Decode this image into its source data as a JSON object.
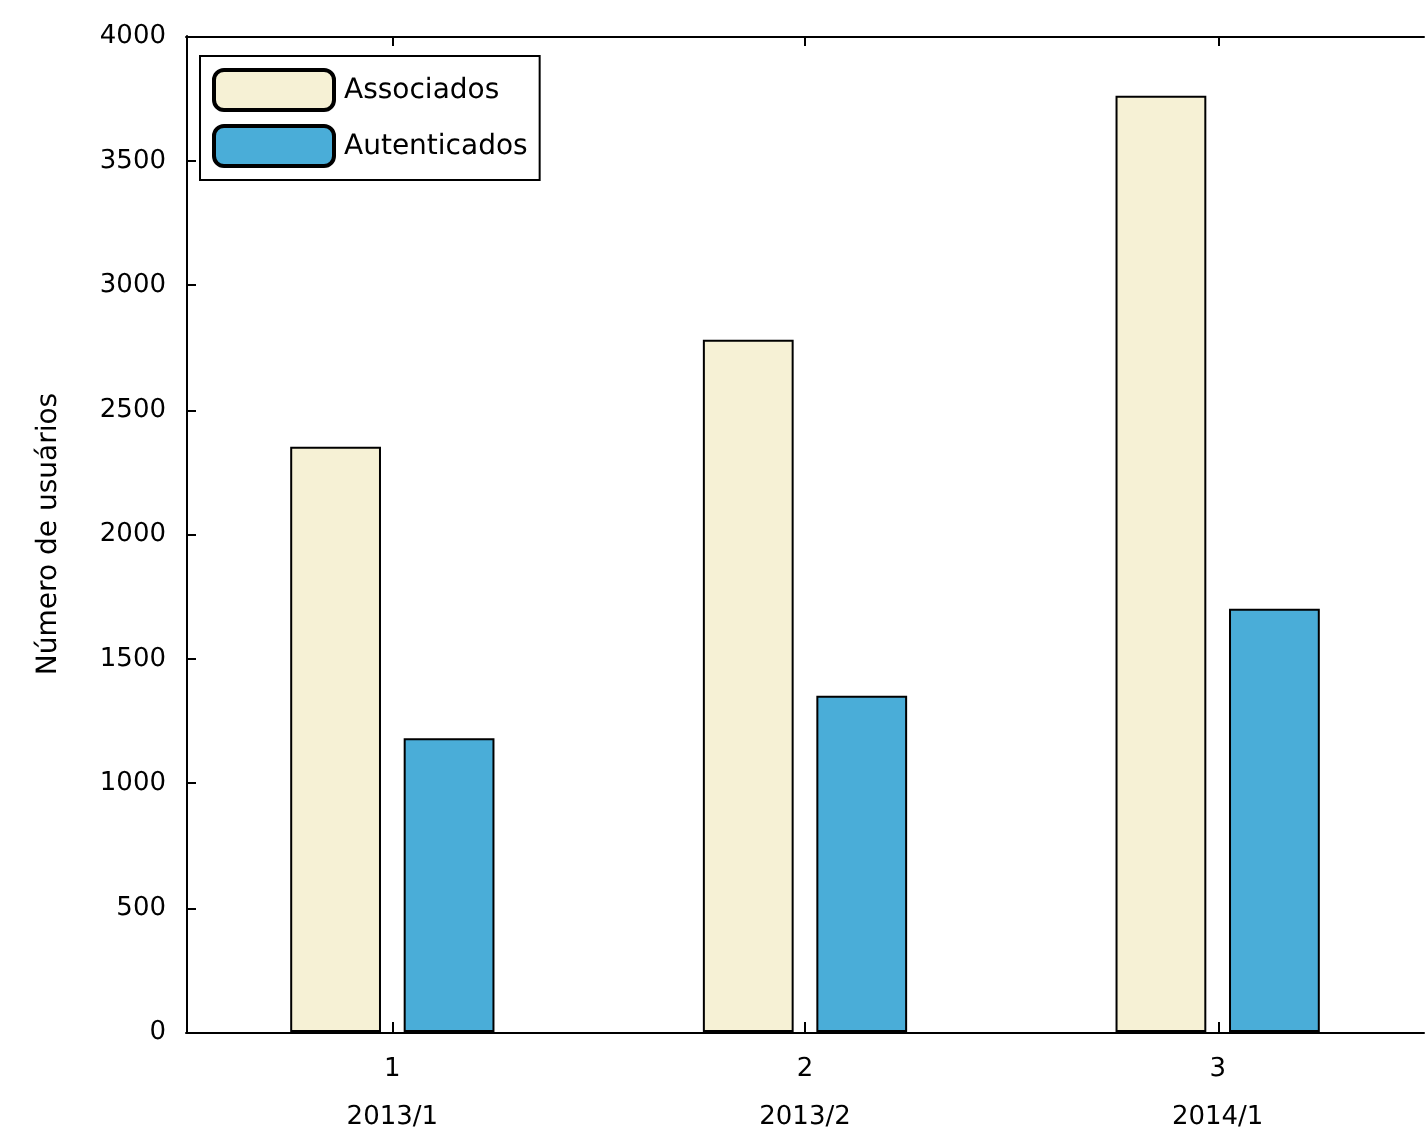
{
  "chart_data": {
    "type": "bar",
    "ylabel": "Número de usuários",
    "categories": [
      "1",
      "2",
      "3"
    ],
    "annotations": [
      "2013/1",
      "2013/2",
      "2014/1"
    ],
    "series": [
      {
        "name": "Associados",
        "color": "#f6f1d5",
        "values": [
          2350,
          2780,
          3760
        ]
      },
      {
        "name": "Autenticados",
        "color": "#4aadd8",
        "values": [
          1180,
          1350,
          1700
        ]
      }
    ],
    "ylim": [
      0,
      4000
    ],
    "yticks": [
      0,
      500,
      1000,
      1500,
      2000,
      2500,
      3000,
      3500,
      4000
    ],
    "grid": false,
    "legend": "top left"
  }
}
